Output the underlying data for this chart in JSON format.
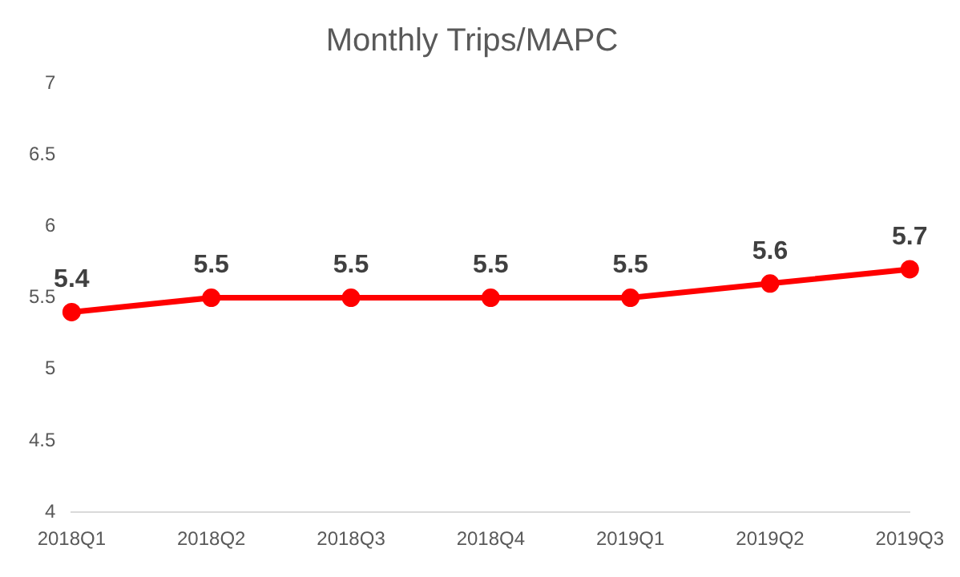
{
  "chart_data": {
    "type": "line",
    "title": "Monthly Trips/MAPC",
    "categories": [
      "2018Q1",
      "2018Q2",
      "2018Q3",
      "2018Q4",
      "2019Q1",
      "2019Q2",
      "2019Q3"
    ],
    "series": [
      {
        "color": "#ff0000",
        "values": [
          5.4,
          5.5,
          5.5,
          5.5,
          5.5,
          5.6,
          5.7
        ]
      }
    ],
    "ylim": [
      4,
      7
    ],
    "yticks": [
      4,
      4.5,
      5,
      5.5,
      6,
      6.5,
      7
    ],
    "grid": false,
    "legend": false,
    "marker": "circle",
    "line_style": "solid",
    "data_labels": true
  }
}
